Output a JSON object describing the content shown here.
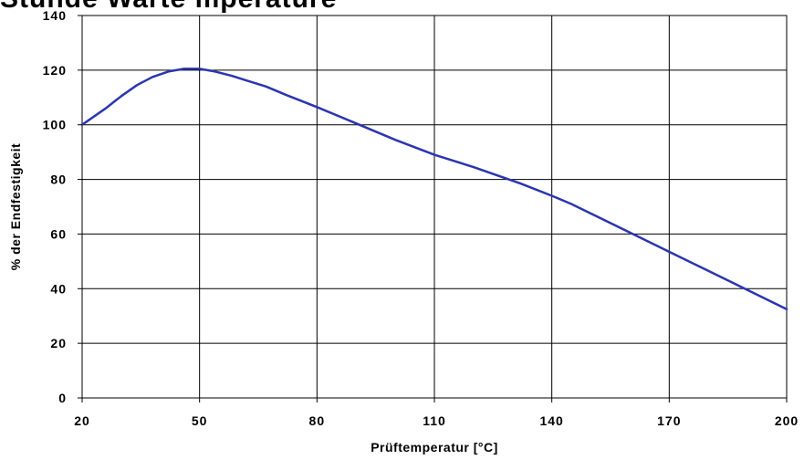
{
  "chart_data": {
    "type": "line",
    "title": "Stunde     Warte mperature",
    "xlabel": "Prüftemperatur [°C]",
    "ylabel": "% der Endfestigkeit",
    "xlim": [
      20,
      200
    ],
    "ylim": [
      0,
      140
    ],
    "x_ticks": [
      "20",
      "50",
      "80",
      "110",
      "140",
      "170",
      "200"
    ],
    "y_ticks": [
      "0",
      "20",
      "40",
      "60",
      "80",
      "100",
      "120",
      "140"
    ],
    "grid": true,
    "legend": "none",
    "line_color": "#2b35b0",
    "grid_color": "#000000",
    "series": [
      {
        "x": [
          20,
          22,
          26,
          30,
          34,
          38,
          42,
          46,
          50,
          54,
          58,
          62,
          67,
          72,
          80,
          90,
          100,
          110,
          120,
          125,
          132,
          140,
          145,
          150,
          160,
          170,
          180,
          190,
          200
        ],
        "y": [
          100,
          102,
          106,
          110.5,
          114.5,
          117.5,
          119.5,
          120.5,
          120.5,
          119.5,
          118,
          116.2,
          114,
          111,
          106.5,
          100.5,
          94.5,
          89,
          84.5,
          82,
          78.5,
          74,
          71,
          67.5,
          60.5,
          53.5,
          46.5,
          39.5,
          32.5
        ]
      }
    ]
  }
}
